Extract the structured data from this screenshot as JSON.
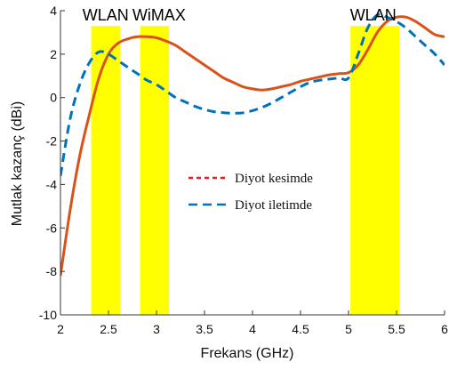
{
  "chart_data": {
    "type": "line",
    "title": "",
    "xlabel": "Frekans (GHz)",
    "ylabel": "Mutlak kazanç (dBi)",
    "xlim": [
      2,
      6
    ],
    "ylim": [
      -10,
      4
    ],
    "xticks": [
      2,
      2.5,
      3,
      3.5,
      4,
      4.5,
      5,
      5.5,
      6
    ],
    "xtick_labels": [
      "2",
      "2.5",
      "3",
      "3.5",
      "4",
      "4.5",
      "5",
      "5.5",
      "6"
    ],
    "yticks": [
      -10,
      -8,
      -6,
      -4,
      -2,
      0,
      2,
      4
    ],
    "ytick_labels": [
      "-10",
      "-8",
      "-6",
      "-4",
      "-2",
      "0",
      "2",
      "4"
    ],
    "grid": false,
    "legend_position": "center",
    "bands": [
      {
        "label": "WLAN",
        "x0": 2.32,
        "x1": 2.62,
        "color": "#ffff00"
      },
      {
        "label": "WiMAX",
        "x0": 2.83,
        "x1": 3.13,
        "color": "#ffff00"
      },
      {
        "label": "WLAN",
        "x0": 5.02,
        "x1": 5.53,
        "color": "#ffff00"
      }
    ],
    "series": [
      {
        "name": "Diyot kesimde",
        "color": "#d95319",
        "dash": "solid",
        "x": [
          2.0,
          2.1,
          2.2,
          2.3,
          2.4,
          2.5,
          2.6,
          2.7,
          2.8,
          2.9,
          3.0,
          3.1,
          3.2,
          3.3,
          3.4,
          3.5,
          3.6,
          3.7,
          3.8,
          3.9,
          4.0,
          4.1,
          4.2,
          4.3,
          4.4,
          4.5,
          4.6,
          4.7,
          4.8,
          4.9,
          5.0,
          5.1,
          5.2,
          5.3,
          5.4,
          5.5,
          5.6,
          5.7,
          5.8,
          5.9,
          6.0
        ],
        "y": [
          -8.2,
          -5.2,
          -2.7,
          -0.8,
          0.9,
          2.0,
          2.5,
          2.7,
          2.8,
          2.8,
          2.75,
          2.6,
          2.4,
          2.1,
          1.8,
          1.5,
          1.2,
          0.9,
          0.7,
          0.5,
          0.4,
          0.35,
          0.4,
          0.5,
          0.6,
          0.75,
          0.85,
          0.95,
          1.05,
          1.1,
          1.15,
          1.5,
          2.2,
          3.0,
          3.5,
          3.7,
          3.7,
          3.5,
          3.2,
          2.9,
          2.8
        ]
      },
      {
        "name": "Diyot iletimde",
        "color": "#0072bd",
        "dash": "dashed",
        "x": [
          2.0,
          2.1,
          2.2,
          2.3,
          2.4,
          2.5,
          2.6,
          2.7,
          2.8,
          2.9,
          3.0,
          3.1,
          3.2,
          3.3,
          3.4,
          3.5,
          3.6,
          3.7,
          3.8,
          3.9,
          4.0,
          4.1,
          4.2,
          4.3,
          4.4,
          4.5,
          4.6,
          4.7,
          4.8,
          4.9,
          5.0,
          5.1,
          5.2,
          5.3,
          5.4,
          5.5,
          5.6,
          5.7,
          5.8,
          5.9,
          6.0
        ],
        "y": [
          -3.6,
          -1.0,
          0.6,
          1.6,
          2.1,
          2.0,
          1.7,
          1.4,
          1.1,
          0.8,
          0.6,
          0.3,
          0.0,
          -0.2,
          -0.4,
          -0.55,
          -0.65,
          -0.7,
          -0.72,
          -0.7,
          -0.6,
          -0.45,
          -0.25,
          0.0,
          0.25,
          0.5,
          0.7,
          0.8,
          0.85,
          0.9,
          0.9,
          2.0,
          3.2,
          3.8,
          3.7,
          3.5,
          3.2,
          2.8,
          2.4,
          2.0,
          1.5
        ]
      }
    ]
  }
}
